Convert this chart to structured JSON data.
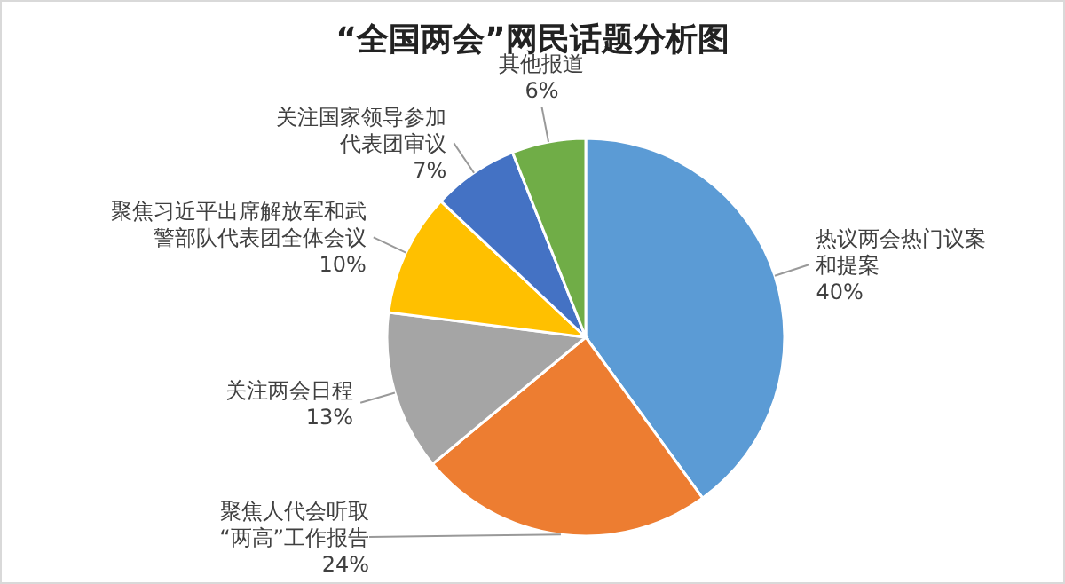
{
  "chart_data": {
    "type": "pie",
    "title": "“全国两会”网民话题分析图",
    "categories": [
      "热议两会热门议案和提案",
      "聚焦人代会听取“两高”工作报告",
      "关注两会日程",
      "聚焦习近平出席解放军和武警部队代表团全体会议",
      "关注国家领导参加代表团审议",
      "其他报道"
    ],
    "values": [
      40,
      24,
      13,
      10,
      7,
      6
    ],
    "colors": [
      "#5b9bd5",
      "#ed7d31",
      "#a5a5a5",
      "#ffc000",
      "#4472c4",
      "#70ad47"
    ],
    "value_labels": [
      "40%",
      "24%",
      "13%",
      "10%",
      "7%",
      "6%"
    ]
  }
}
